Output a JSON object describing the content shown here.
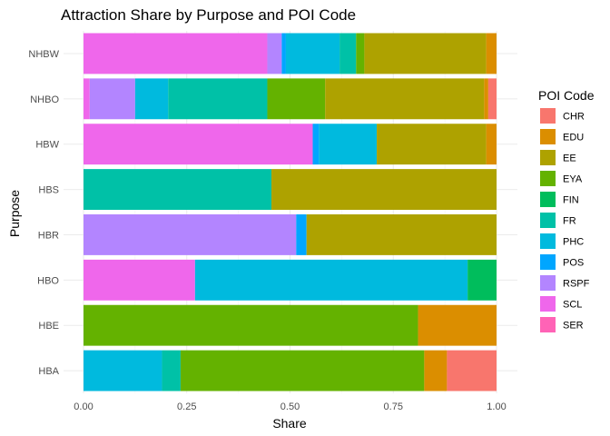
{
  "chart_data": {
    "type": "bar",
    "orientation": "horizontal",
    "stacked": true,
    "title": "Attraction Share by Purpose and POI Code",
    "xlabel": "Share",
    "ylabel": "Purpose",
    "xlim": [
      0,
      1
    ],
    "xticks": [
      "0.00",
      "0.25",
      "0.50",
      "0.75",
      "1.00"
    ],
    "grid": true,
    "legend_title": "POI Code",
    "legend_position": "right",
    "codes": [
      {
        "name": "CHR",
        "color": "#F8766D"
      },
      {
        "name": "EDU",
        "color": "#DB8E00"
      },
      {
        "name": "EE",
        "color": "#AEA200"
      },
      {
        "name": "EYA",
        "color": "#64B200"
      },
      {
        "name": "FIN",
        "color": "#00BD5C"
      },
      {
        "name": "FR",
        "color": "#00C1A7"
      },
      {
        "name": "PHC",
        "color": "#00BADE"
      },
      {
        "name": "POS",
        "color": "#00A6FF"
      },
      {
        "name": "RSPF",
        "color": "#B385FF"
      },
      {
        "name": "SCL",
        "color": "#EF67EB"
      },
      {
        "name": "SER",
        "color": "#FF63B6"
      }
    ],
    "categories": [
      "NHBW",
      "NHBO",
      "HBW",
      "HBS",
      "HBR",
      "HBO",
      "HBE",
      "HBA"
    ],
    "bars": [
      {
        "category": "NHBW",
        "segments": [
          {
            "code": "SCL",
            "value": 0.445
          },
          {
            "code": "RSPF",
            "value": 0.035
          },
          {
            "code": "POS",
            "value": 0.01
          },
          {
            "code": "PHC",
            "value": 0.13
          },
          {
            "code": "FR",
            "value": 0.04
          },
          {
            "code": "EYA",
            "value": 0.02
          },
          {
            "code": "EE",
            "value": 0.295
          },
          {
            "code": "EDU",
            "value": 0.025
          }
        ]
      },
      {
        "category": "NHBO",
        "segments": [
          {
            "code": "SCL",
            "value": 0.015
          },
          {
            "code": "RSPF",
            "value": 0.11
          },
          {
            "code": "PHC",
            "value": 0.08
          },
          {
            "code": "FR",
            "value": 0.24
          },
          {
            "code": "EYA",
            "value": 0.14
          },
          {
            "code": "EE",
            "value": 0.385
          },
          {
            "code": "EDU",
            "value": 0.01
          },
          {
            "code": "CHR",
            "value": 0.02
          }
        ]
      },
      {
        "category": "HBW",
        "segments": [
          {
            "code": "SCL",
            "value": 0.555
          },
          {
            "code": "POS",
            "value": 0.015
          },
          {
            "code": "PHC",
            "value": 0.14
          },
          {
            "code": "EE",
            "value": 0.265
          },
          {
            "code": "EDU",
            "value": 0.025
          }
        ]
      },
      {
        "category": "HBS",
        "segments": [
          {
            "code": "FR",
            "value": 0.455
          },
          {
            "code": "EE",
            "value": 0.545
          }
        ]
      },
      {
        "category": "HBR",
        "segments": [
          {
            "code": "RSPF",
            "value": 0.515
          },
          {
            "code": "POS",
            "value": 0.025
          },
          {
            "code": "EE",
            "value": 0.46
          }
        ]
      },
      {
        "category": "HBO",
        "segments": [
          {
            "code": "SCL",
            "value": 0.27
          },
          {
            "code": "PHC",
            "value": 0.66
          },
          {
            "code": "FIN",
            "value": 0.07
          }
        ]
      },
      {
        "category": "HBE",
        "segments": [
          {
            "code": "EYA",
            "value": 0.81
          },
          {
            "code": "EDU",
            "value": 0.19
          }
        ]
      },
      {
        "category": "HBA",
        "segments": [
          {
            "code": "PHC",
            "value": 0.19
          },
          {
            "code": "FR",
            "value": 0.045
          },
          {
            "code": "EYA",
            "value": 0.59
          },
          {
            "code": "EDU",
            "value": 0.055
          },
          {
            "code": "CHR",
            "value": 0.12
          }
        ]
      }
    ]
  }
}
